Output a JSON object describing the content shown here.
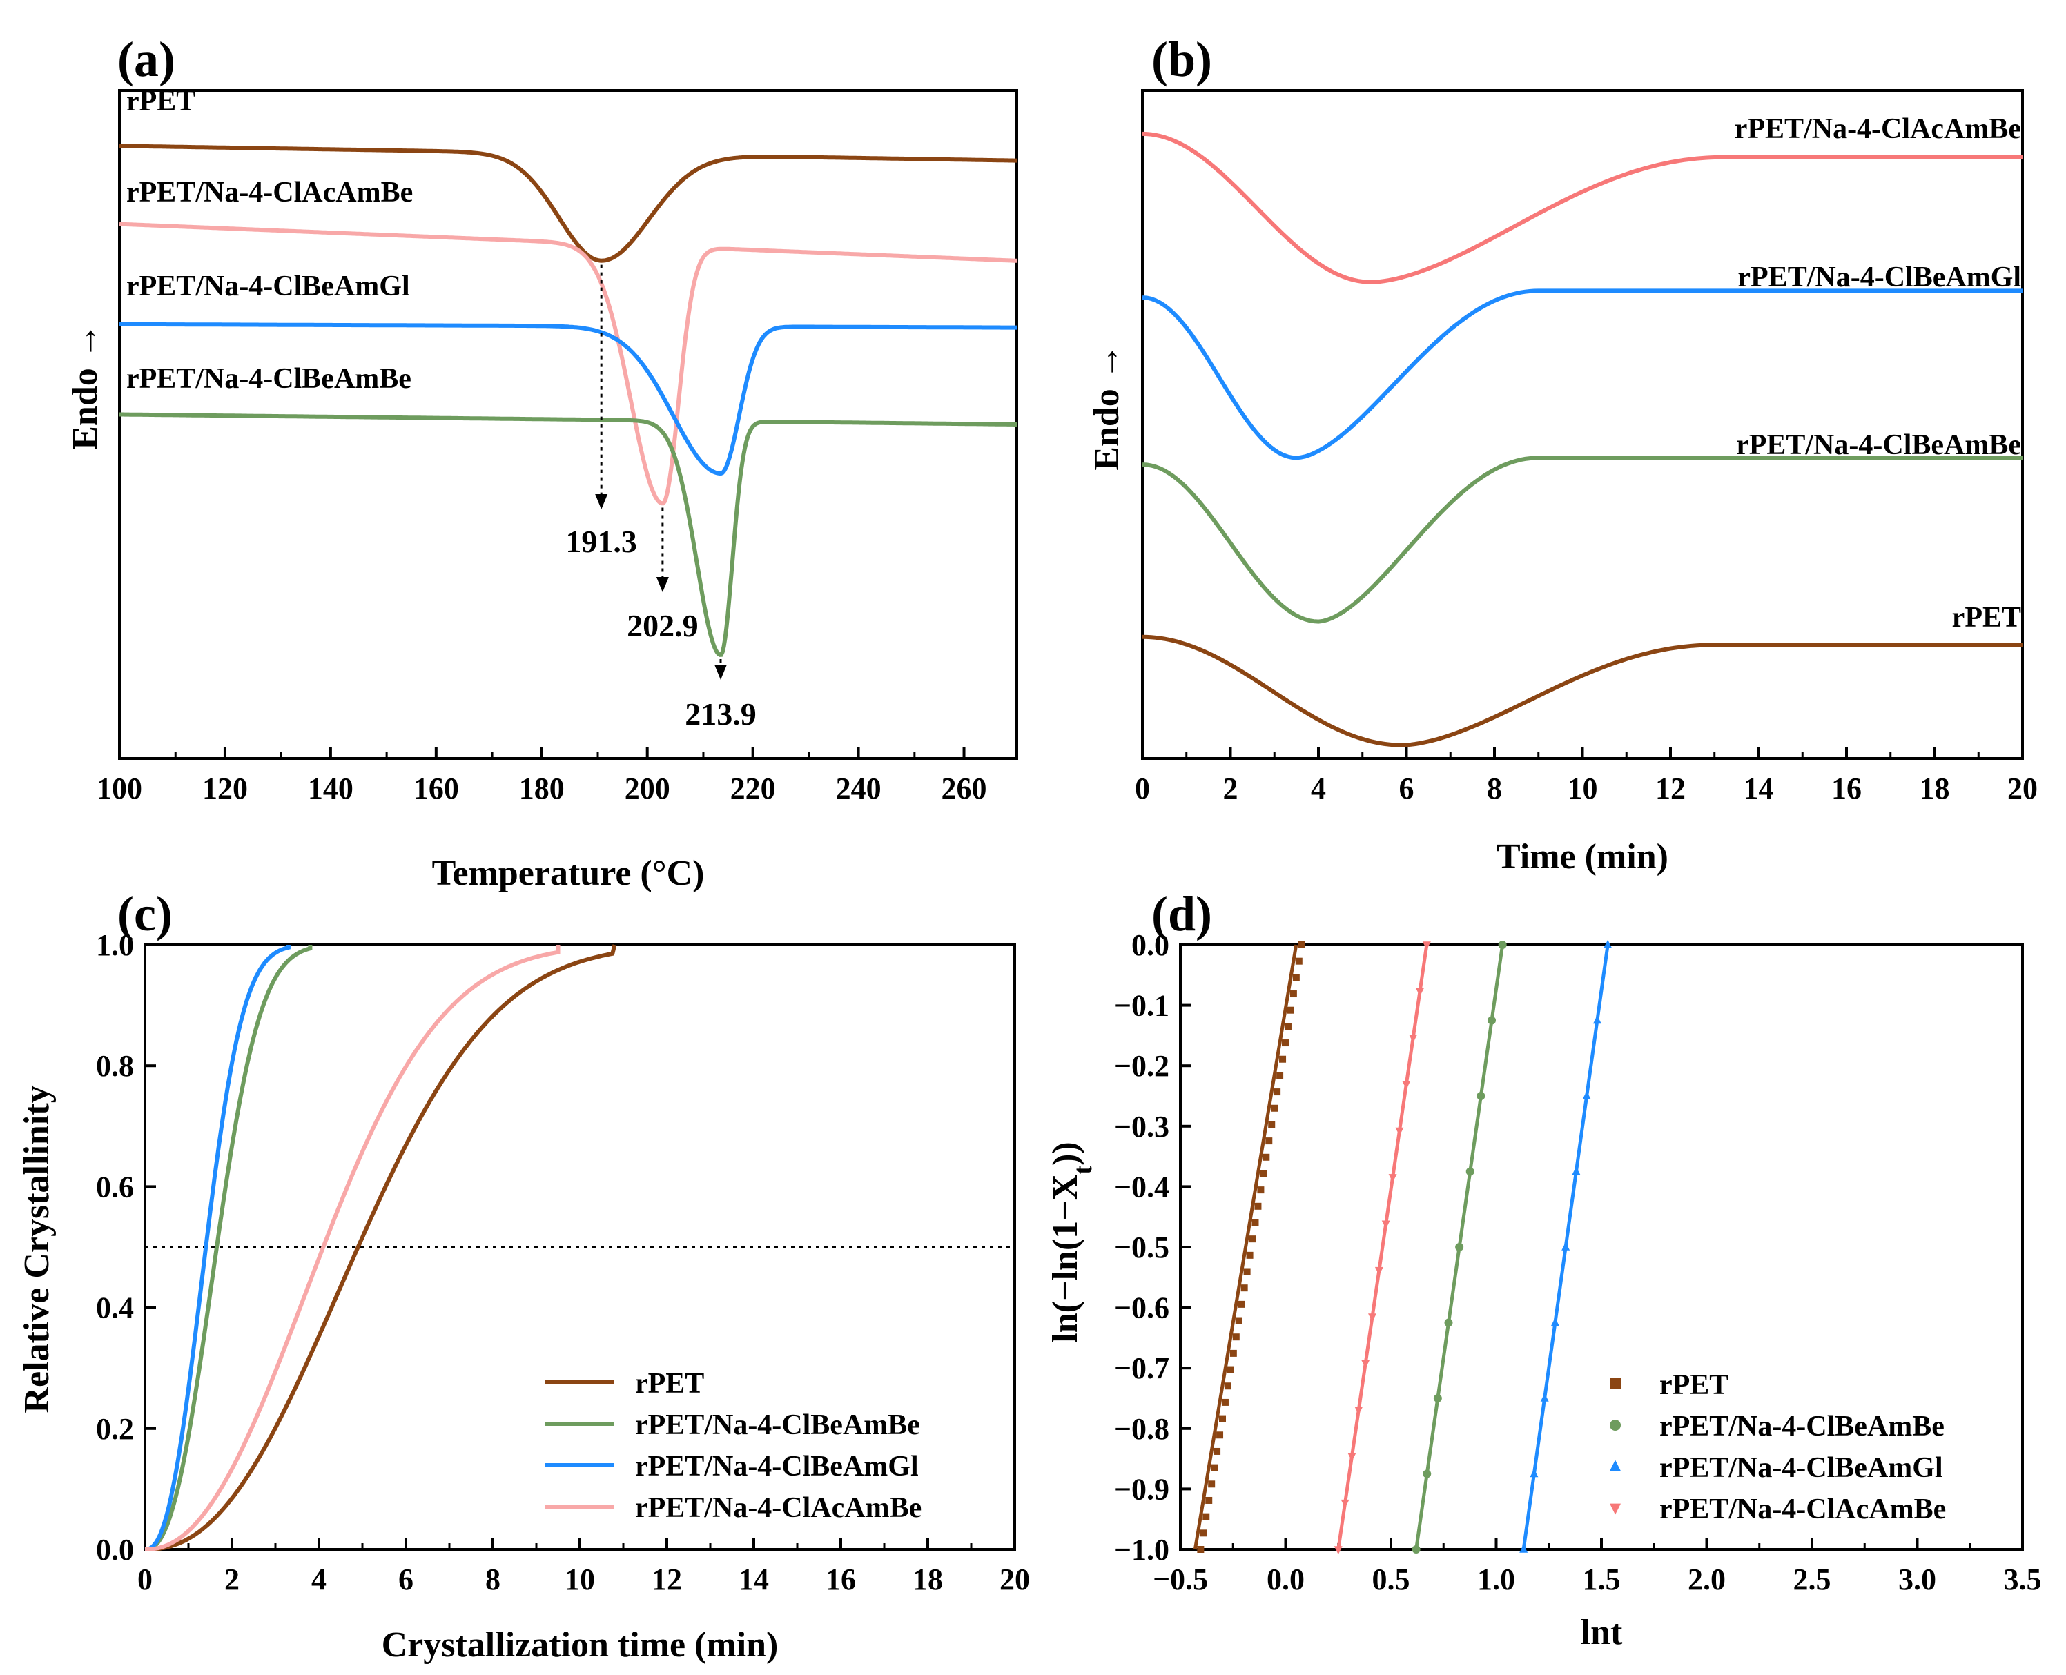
{
  "colors": {
    "rPET": "#8B4513",
    "rPET/Na-4-ClAcAmBe": "#F8A8A8",
    "rPET/Na-4-ClBeAmGl": "#1E8BFF",
    "rPET/Na-4-ClBeAmBe": "#6E9C5E",
    "rPET/Na-4-ClAcAmBe_b": "#F77878"
  },
  "chart_data": [
    {
      "panel": "(a)",
      "type": "line",
      "xlabel": "Temperature (°C)",
      "ylabel": "Endo",
      "xlim": [
        100,
        270
      ],
      "xticks": [
        100,
        120,
        140,
        160,
        180,
        200,
        220,
        240,
        260
      ],
      "series": [
        {
          "name": "rPET",
          "color": "#8B4513",
          "baseline": [
            0.917,
            0.895
          ],
          "peak_x": 191.3,
          "depth": 0.16,
          "w_left": 8,
          "w_right": 9
        },
        {
          "name": "rPET/Na-4-ClAcAmBe",
          "color": "#F8A8A8",
          "baseline": [
            0.8,
            0.745
          ],
          "peak_x": 202.9,
          "depth": 0.385,
          "w_left": 6,
          "w_right": 3
        },
        {
          "name": "rPET/Na-4-ClBeAmGl",
          "color": "#1E8BFF",
          "baseline": [
            0.65,
            0.645
          ],
          "peak_x": 213.9,
          "depth": 0.22,
          "w_left": 9,
          "w_right": 3.5
        },
        {
          "name": "rPET/Na-4-ClBeAmBe",
          "color": "#6E9C5E",
          "baseline": [
            0.515,
            0.5
          ],
          "peak_x": 213.9,
          "depth": 0.35,
          "w_left": 4.5,
          "w_right": 2.2
        }
      ],
      "annotations": [
        {
          "x": 191.3,
          "text": "191.3"
        },
        {
          "x": 202.9,
          "text": "202.9"
        },
        {
          "x": 213.9,
          "text": "213.9"
        }
      ]
    },
    {
      "panel": "(b)",
      "type": "line",
      "xlabel": "Time (min)",
      "ylabel": "Endo",
      "xlim": [
        0,
        20
      ],
      "xticks": [
        0,
        2,
        4,
        6,
        8,
        10,
        12,
        14,
        16,
        18,
        20
      ],
      "series": [
        {
          "name": "rPET/Na-4-ClAcAmBe",
          "color": "#F77878",
          "start": 0.935,
          "min_t": 5.2,
          "min_v": 0.713,
          "end": 0.9,
          "end_t": 13.2
        },
        {
          "name": "rPET/Na-4-ClBeAmGl",
          "color": "#1E8BFF",
          "start": 0.69,
          "min_t": 3.5,
          "min_v": 0.45,
          "end": 0.7,
          "end_t": 9.0
        },
        {
          "name": "rPET/Na-4-ClBeAmBe",
          "color": "#6E9C5E",
          "start": 0.44,
          "min_t": 4.0,
          "min_v": 0.205,
          "end": 0.45,
          "end_t": 9.0
        },
        {
          "name": "rPET",
          "color": "#8B4513",
          "start": 0.182,
          "min_t": 5.9,
          "min_v": 0.02,
          "end": 0.17,
          "end_t": 13.0
        }
      ]
    },
    {
      "panel": "(c)",
      "type": "line",
      "xlabel": "Crystallization time (min)",
      "ylabel": "Relative Crystallinity",
      "xlim": [
        0,
        20
      ],
      "ylim": [
        0,
        1
      ],
      "xticks": [
        0,
        2,
        4,
        6,
        8,
        10,
        12,
        14,
        16,
        18,
        20
      ],
      "yticks": [
        0.0,
        0.2,
        0.4,
        0.6,
        0.8,
        1.0
      ],
      "reference_y": 0.5,
      "series": [
        {
          "name": "rPET",
          "color": "#8B4513",
          "t_half": 4.9,
          "n": 2.3,
          "t_end": 10.8
        },
        {
          "name": "rPET/Na-4-ClBeAmBe",
          "color": "#6E9C5E",
          "t_half": 1.65,
          "n": 2.4,
          "t_end": 3.8
        },
        {
          "name": "rPET/Na-4-ClBeAmGl",
          "color": "#1E8BFF",
          "t_half": 1.4,
          "n": 2.4,
          "t_end": 3.3
        },
        {
          "name": "rPET/Na-4-ClAcAmBe",
          "color": "#F8A8A8",
          "t_half": 4.1,
          "n": 2.2,
          "t_end": 9.5
        }
      ],
      "legend": [
        "rPET",
        "rPET/Na-4-ClBeAmBe",
        "rPET/Na-4-ClBeAmGl",
        "rPET/Na-4-ClAcAmBe"
      ]
    },
    {
      "panel": "(d)",
      "type": "scatter",
      "xlabel": "lnt",
      "ylabel": "ln(−ln(1−X",
      "ylabel_sub": "t",
      "ylabel_end": "))",
      "xlim": [
        -0.5,
        3.5
      ],
      "ylim": [
        -1.0,
        0.0
      ],
      "xticks": [
        -0.5,
        0.0,
        0.5,
        1.0,
        1.5,
        2.0,
        2.5,
        3.0,
        3.5
      ],
      "xtick_labels": [
        "−0.5",
        "0.0",
        "0.5",
        "1.0",
        "1.5",
        "2.0",
        "2.5",
        "3.0",
        "3.5"
      ],
      "yticks": [
        0.0,
        -0.1,
        -0.2,
        -0.3,
        -0.4,
        -0.5,
        -0.6,
        -0.7,
        -0.8,
        -0.9,
        -1.0
      ],
      "ytick_labels": [
        "0.0",
        "−0.1",
        "−0.2",
        "−0.3",
        "−0.4",
        "−0.5",
        "−0.6",
        "−0.7",
        "−0.8",
        "−0.9",
        "−1.0"
      ],
      "series": [
        {
          "name": "rPET",
          "color": "#8B4513",
          "marker": "square",
          "x_at_min": -0.43,
          "x_at_max": 0.05,
          "npts": 38
        },
        {
          "name": "rPET/Na-4-ClBeAmBe",
          "color": "#6E9C5E",
          "marker": "circle",
          "x_at_min": 0.62,
          "x_at_max": 1.03,
          "npts": 9
        },
        {
          "name": "rPET/Na-4-ClBeAmGl",
          "color": "#1E8BFF",
          "marker": "triangle-up",
          "x_at_min": 1.13,
          "x_at_max": 1.53,
          "npts": 9
        },
        {
          "name": "rPET/Na-4-ClAcAmBe",
          "color": "#F77878",
          "marker": "triangle-down",
          "x_at_min": 0.25,
          "x_at_max": 0.67,
          "npts": 14
        }
      ],
      "legend": [
        "rPET",
        "rPET/Na-4-ClBeAmBe",
        "rPET/Na-4-ClBeAmGl",
        "rPET/Na-4-ClAcAmBe"
      ]
    }
  ]
}
